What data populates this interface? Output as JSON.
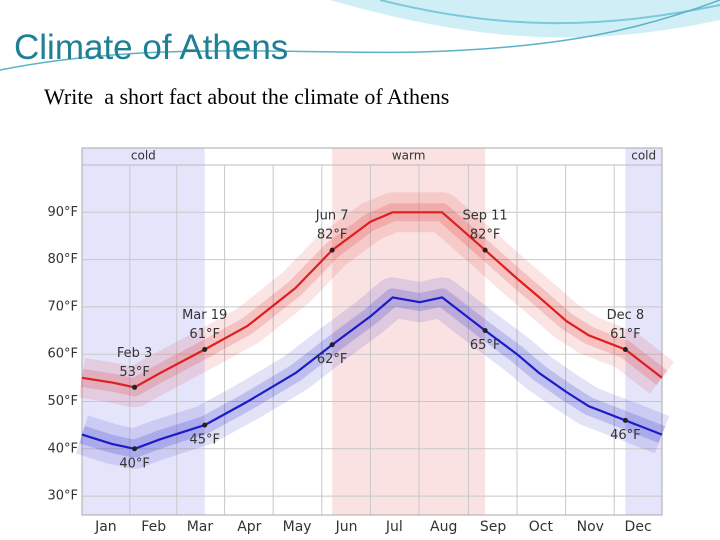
{
  "title": "Climate of Athens",
  "subtitle": "Write  a short fact about the climate of Athens",
  "chart_data": {
    "type": "line",
    "x": [
      1,
      20,
      34,
      50,
      78,
      105,
      135,
      158,
      182,
      196,
      213,
      227,
      254,
      274,
      288,
      305,
      319,
      342,
      365
    ],
    "xlim": [
      1,
      365
    ],
    "xticks": [
      {
        "value": 16,
        "label": "Jan"
      },
      {
        "value": 46,
        "label": "Feb"
      },
      {
        "value": 75,
        "label": "Mar"
      },
      {
        "value": 106,
        "label": "Apr"
      },
      {
        "value": 136,
        "label": "May"
      },
      {
        "value": 167,
        "label": "Jun"
      },
      {
        "value": 197,
        "label": "Jul"
      },
      {
        "value": 228,
        "label": "Aug"
      },
      {
        "value": 259,
        "label": "Sep"
      },
      {
        "value": 289,
        "label": "Oct"
      },
      {
        "value": 320,
        "label": "Nov"
      },
      {
        "value": 350,
        "label": "Dec"
      }
    ],
    "ylim": [
      26,
      100
    ],
    "yticks": [
      {
        "value": 30,
        "label": "30°F"
      },
      {
        "value": 40,
        "label": "40°F"
      },
      {
        "value": 50,
        "label": "50°F"
      },
      {
        "value": 60,
        "label": "60°F"
      },
      {
        "value": 70,
        "label": "70°F"
      },
      {
        "value": 80,
        "label": "80°F"
      },
      {
        "value": 90,
        "label": "90°F"
      }
    ],
    "grid": true,
    "series": [
      {
        "color": "#dd1f1f",
        "values": [
          55,
          54,
          53,
          56,
          61,
          66,
          74,
          82,
          88,
          90,
          90,
          90,
          82,
          76,
          72,
          67,
          64,
          61,
          55
        ]
      },
      {
        "color": "#1c1cc8",
        "values": [
          43,
          41,
          40,
          42,
          45,
          50,
          56,
          62,
          68,
          72,
          71,
          72,
          65,
          60,
          56,
          52,
          49,
          46,
          43
        ]
      }
    ],
    "bands": [
      {
        "label": "cold",
        "start": 1,
        "end": 78,
        "color": "#e4e4fb"
      },
      {
        "label": "warm",
        "start": 158,
        "end": 254,
        "color": "#fbe2e2"
      },
      {
        "label": "cold",
        "start": 342,
        "end": 365,
        "color": "#e4e4fb"
      }
    ],
    "annotations": [
      {
        "series": 0,
        "x": 34,
        "y": 53,
        "date": "Feb 3",
        "label": "53°F",
        "position": "above"
      },
      {
        "series": 0,
        "x": 78,
        "y": 61,
        "date": "Mar 19",
        "label": "61°F",
        "position": "above"
      },
      {
        "series": 0,
        "x": 158,
        "y": 82,
        "date": "Jun 7",
        "label": "82°F",
        "position": "above"
      },
      {
        "series": 0,
        "x": 254,
        "y": 82,
        "date": "Sep 11",
        "label": "82°F",
        "position": "above"
      },
      {
        "series": 0,
        "x": 342,
        "y": 61,
        "date": "Dec 8",
        "label": "61°F",
        "position": "above"
      },
      {
        "series": 1,
        "x": 34,
        "y": 40,
        "label": "40°F",
        "position": "below"
      },
      {
        "series": 1,
        "x": 78,
        "y": 45,
        "label": "45°F",
        "position": "below"
      },
      {
        "series": 1,
        "x": 158,
        "y": 62,
        "label": "62°F",
        "position": "below"
      },
      {
        "series": 1,
        "x": 254,
        "y": 65,
        "label": "65°F",
        "position": "below"
      },
      {
        "series": 1,
        "x": 342,
        "y": 46,
        "label": "46°F",
        "position": "below"
      }
    ]
  }
}
